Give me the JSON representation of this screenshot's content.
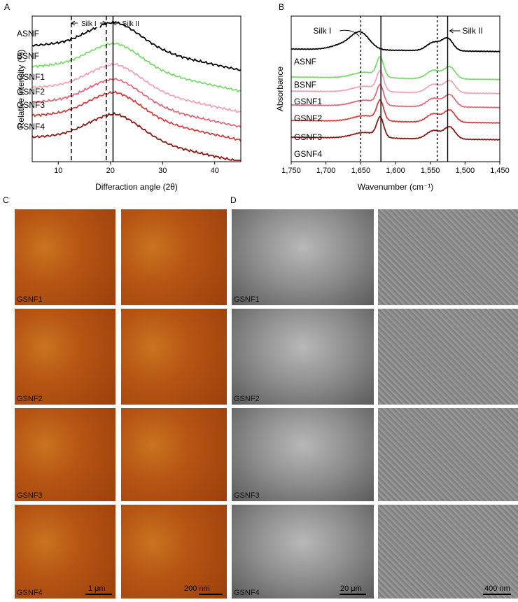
{
  "panels": {
    "a_label": "A",
    "b_label": "B",
    "c_label": "C",
    "d_label": "D"
  },
  "chart_data": [
    {
      "type": "line",
      "panel": "A",
      "xlabel": "Differaction angle (2θ)",
      "ylabel": "Relative intensity (%)",
      "xlim": [
        5,
        45
      ],
      "x_ticks": [
        "10",
        "20",
        "30",
        "40"
      ],
      "grid": false,
      "annotations": [
        {
          "text": "Silk I",
          "x_range": [
            12.5,
            19.2
          ]
        },
        {
          "text": "Silk II",
          "x_range": [
            20.5,
            25
          ]
        }
      ],
      "reference_lines": [
        {
          "x": 12.5,
          "style": "dashed"
        },
        {
          "x": 19.2,
          "style": "dashed"
        },
        {
          "x": 20.5,
          "style": "solid"
        }
      ],
      "series": [
        {
          "name": "ASNF",
          "color": "#000000"
        },
        {
          "name": "BSNF",
          "color": "#7ddb6e"
        },
        {
          "name": "GSNF1",
          "color": "#f2a6b4"
        },
        {
          "name": "GSNF2",
          "color": "#e06b7a"
        },
        {
          "name": "GSNF3",
          "color": "#d0413f"
        },
        {
          "name": "GSNF4",
          "color": "#8b1a14"
        }
      ]
    },
    {
      "type": "line",
      "panel": "B",
      "xlabel": "Wavenumber (cm⁻¹)",
      "ylabel": "Absorbance",
      "xlim": [
        1750,
        1450
      ],
      "x_ticks": [
        "1,750",
        "1,700",
        "1,650",
        "1,600",
        "1,550",
        "1,500",
        "1,450"
      ],
      "grid": false,
      "annotations": [
        {
          "text": "Silk I",
          "x": 1650
        },
        {
          "text": "Silk II",
          "x": 1525
        }
      ],
      "reference_lines": [
        {
          "x": 1650,
          "style": "dotted"
        },
        {
          "x": 1621,
          "style": "solid"
        },
        {
          "x": 1540,
          "style": "dotted"
        },
        {
          "x": 1525,
          "style": "solid"
        }
      ],
      "series": [
        {
          "name": "ASNF",
          "color": "#000000"
        },
        {
          "name": "BSNF",
          "color": "#7ddb6e"
        },
        {
          "name": "GSNF1",
          "color": "#f2a6b4"
        },
        {
          "name": "GSNF2",
          "color": "#e06b7a"
        },
        {
          "name": "GSNF3",
          "color": "#d0413f"
        },
        {
          "name": "GSNF4",
          "color": "#8b1a14"
        }
      ]
    }
  ],
  "afm": {
    "rows": [
      "GSNF1",
      "GSNF2",
      "GSNF3",
      "GSNF4"
    ],
    "scale_left": "1 μm",
    "scale_right": "200 nm"
  },
  "sem": {
    "rows": [
      "GSNF1",
      "GSNF2",
      "GSNF3",
      "GSNF4"
    ],
    "scale_left": "20 μm",
    "scale_right": "400 nm"
  }
}
